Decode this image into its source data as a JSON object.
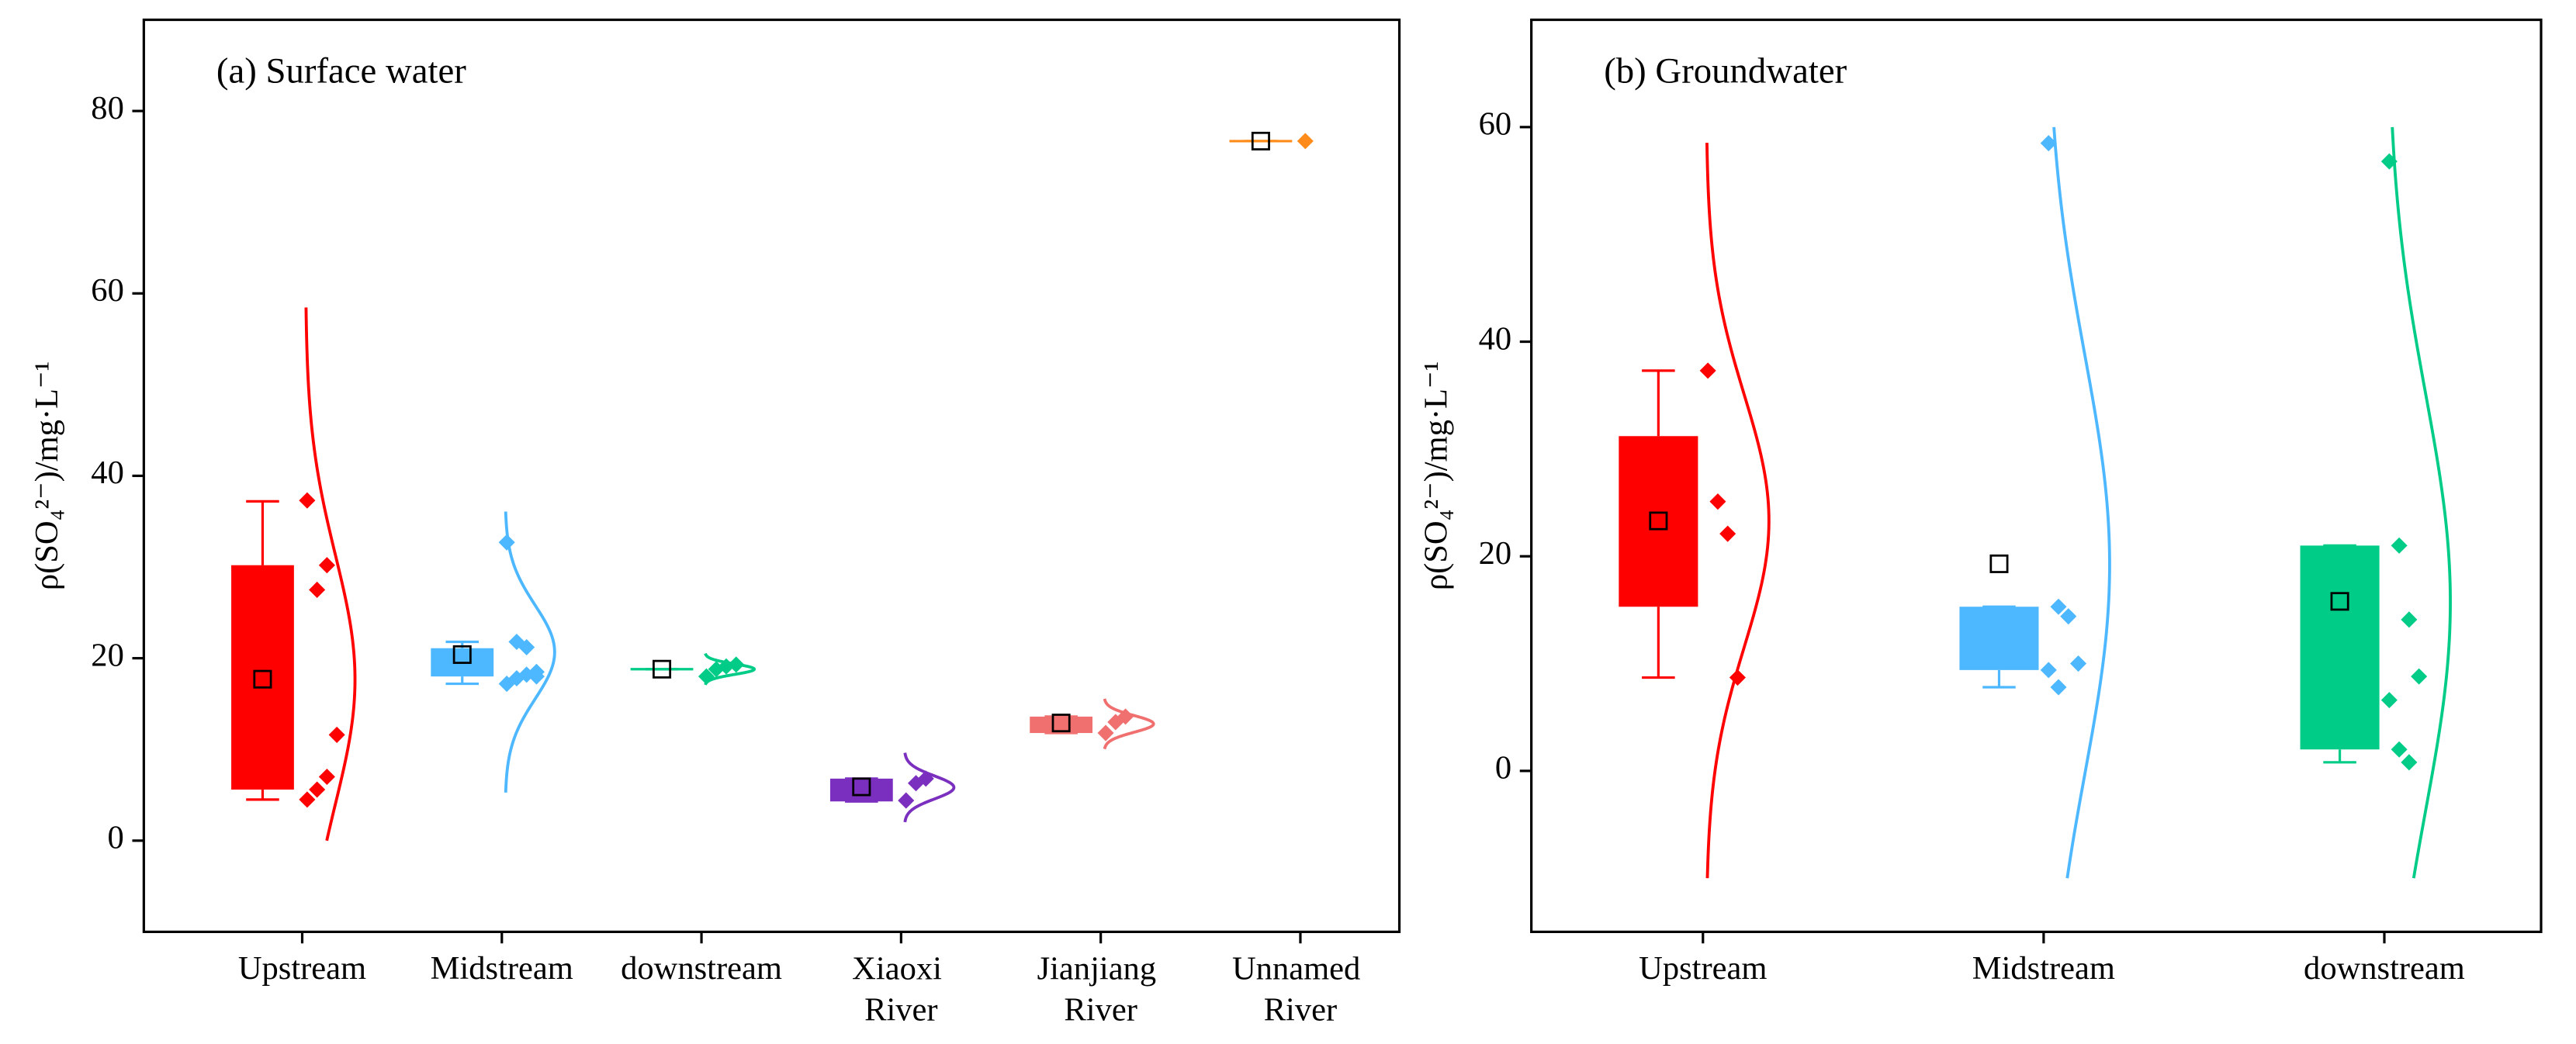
{
  "chart_data": [
    {
      "type": "box",
      "title": "(a) Surface water",
      "ylabel": "ρ(SO₄²⁻)/mg·L⁻¹",
      "categories": [
        "Upstream",
        "Midstream",
        "downstream",
        "Xiaoxi River",
        "Jianjiang River",
        "Unnamed River"
      ],
      "ylim": [
        -10,
        90
      ],
      "yticks": [
        0,
        20,
        40,
        60,
        80
      ],
      "boxes": [
        {
          "color": "#ff0000",
          "min": 4.5,
          "q1": 5.6,
          "q3": 30.2,
          "max": 37.2,
          "mean": 17.7,
          "points": [
            37.3,
            27.5,
            30.2,
            11.6,
            4.5,
            5.6,
            7.0
          ]
        },
        {
          "color": "#4db8ff",
          "min": 17.2,
          "q1": 18.0,
          "q3": 21.1,
          "max": 21.8,
          "mean": 20.4,
          "points": [
            32.7,
            21.8,
            21.2,
            18.5,
            17.2,
            17.8,
            18.2,
            18.0
          ]
        },
        {
          "color": "#00cc88",
          "min": 18.8,
          "q1": 18.8,
          "q3": 18.8,
          "max": 18.8,
          "mean": 18.8,
          "points": [
            18.0,
            18.8,
            19.1,
            19.3
          ]
        },
        {
          "color": "#7b2fbe",
          "min": 4.3,
          "q1": 4.3,
          "q3": 6.8,
          "max": 6.8,
          "mean": 5.9,
          "points": [
            4.4,
            6.3,
            6.8
          ]
        },
        {
          "color": "#f07070",
          "min": 11.8,
          "q1": 11.8,
          "q3": 13.6,
          "max": 13.6,
          "mean": 12.9,
          "points": [
            11.8,
            13.0,
            13.6
          ]
        },
        {
          "color": "#ff8c1a",
          "min": 76.7,
          "q1": 76.7,
          "q3": 76.7,
          "max": 76.7,
          "mean": 76.7,
          "points": [
            76.7
          ]
        }
      ]
    },
    {
      "type": "box",
      "title": "(b) Groundwater",
      "ylabel": "ρ(SO₄²⁻)/mg·L⁻¹",
      "categories": [
        "Upstream",
        "Midstream",
        "downstream"
      ],
      "ylim": [
        -15,
        70
      ],
      "yticks": [
        0,
        20,
        40,
        60
      ],
      "boxes": [
        {
          "color": "#ff0000",
          "min": 8.7,
          "q1": 15.3,
          "q3": 31.2,
          "max": 37.3,
          "mean": 23.3,
          "points": [
            37.3,
            25.1,
            22.1,
            8.7
          ]
        },
        {
          "color": "#4db8ff",
          "min": 7.8,
          "q1": 9.4,
          "q3": 15.3,
          "max": 15.3,
          "mean": 19.3,
          "points": [
            58.5,
            15.3,
            14.4,
            10.0,
            9.4,
            7.8
          ]
        },
        {
          "color": "#00cc88",
          "min": 0.8,
          "q1": 2.0,
          "q3": 21.0,
          "max": 21.0,
          "mean": 15.8,
          "points": [
            56.8,
            21.0,
            14.1,
            8.8,
            6.6,
            2.0,
            0.8
          ]
        }
      ]
    }
  ]
}
